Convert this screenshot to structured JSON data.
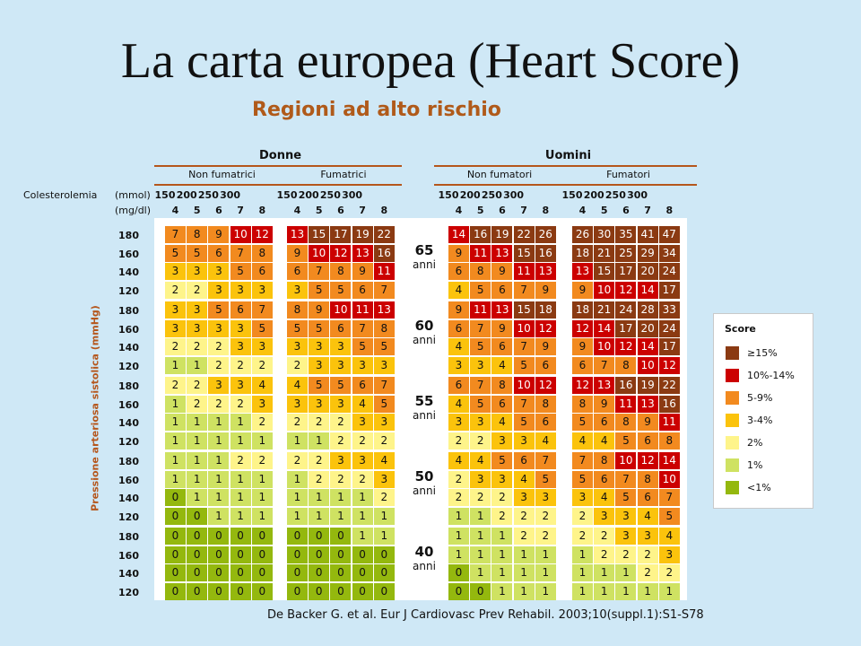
{
  "title": "La carta europea (Heart Score)",
  "subtitle": "Regioni ad alto rischio",
  "headers": {
    "women": "Donne",
    "men": "Uomini",
    "women_nonsmoker": "Non fumatrici",
    "women_smoker": "Fumatrici",
    "men_nonsmoker": "Non fumatori",
    "men_smoker": "Fumatori",
    "cholesterol_label": "Colesterolemia",
    "mmol_label": "(mmol)",
    "mgdl_label": "(mg/dl)",
    "mgdl_values": [
      "150",
      "200",
      "250",
      "300"
    ],
    "mmol_values": [
      "4",
      "5",
      "6",
      "7",
      "8"
    ]
  },
  "ylabel": "Pressione arteriosa sistolica (mmHg)",
  "citation": "De Backer G. et al. Eur J Cardiovasc Prev Rehabil. 2003;10(suppl.1):S1-S78",
  "chart_data": {
    "type": "heatmap",
    "title": "La carta europea (Heart Score)",
    "subtitle": "Regioni ad alto rischio",
    "ylabel": "Pressione arteriosa sistolica (mmHg)",
    "sbp_levels": [
      "180",
      "160",
      "140",
      "120"
    ],
    "cholesterol_mmol": [
      "4",
      "5",
      "6",
      "7",
      "8"
    ],
    "cholesterol_mgdl": [
      "150",
      "200",
      "250",
      "300"
    ],
    "age_unit": "anni",
    "groups": [
      "Donne · Non fumatrici",
      "Donne · Fumatrici",
      "Uomini · Non fumatori",
      "Uomini · Fumatori"
    ],
    "ages": [
      {
        "age": "65",
        "grids": [
          [
            [
              7,
              8,
              9,
              10,
              12
            ],
            [
              5,
              5,
              6,
              7,
              8
            ],
            [
              3,
              3,
              3,
              5,
              6
            ],
            [
              2,
              2,
              3,
              3,
              3
            ]
          ],
          [
            [
              13,
              15,
              17,
              19,
              22
            ],
            [
              9,
              10,
              12,
              13,
              16
            ],
            [
              6,
              7,
              8,
              9,
              11
            ],
            [
              3,
              5,
              5,
              6,
              7
            ]
          ],
          [
            [
              14,
              16,
              19,
              22,
              26
            ],
            [
              9,
              11,
              13,
              15,
              16
            ],
            [
              6,
              8,
              9,
              11,
              13
            ],
            [
              4,
              5,
              6,
              7,
              9
            ]
          ],
          [
            [
              26,
              30,
              35,
              41,
              47
            ],
            [
              18,
              21,
              25,
              29,
              34
            ],
            [
              13,
              15,
              17,
              20,
              24
            ],
            [
              9,
              10,
              12,
              14,
              17
            ]
          ]
        ]
      },
      {
        "age": "60",
        "grids": [
          [
            [
              3,
              3,
              5,
              6,
              7
            ],
            [
              3,
              3,
              3,
              3,
              5
            ],
            [
              2,
              2,
              2,
              3,
              3
            ],
            [
              1,
              1,
              2,
              2,
              2
            ]
          ],
          [
            [
              8,
              9,
              10,
              11,
              13
            ],
            [
              5,
              5,
              6,
              7,
              8
            ],
            [
              3,
              3,
              3,
              5,
              5
            ],
            [
              2,
              3,
              3,
              3,
              3
            ]
          ],
          [
            [
              9,
              11,
              13,
              15,
              18
            ],
            [
              6,
              7,
              9,
              10,
              12
            ],
            [
              4,
              5,
              6,
              7,
              9
            ],
            [
              3,
              3,
              4,
              5,
              6
            ]
          ],
          [
            [
              18,
              21,
              24,
              28,
              33
            ],
            [
              12,
              14,
              17,
              20,
              24
            ],
            [
              9,
              10,
              12,
              14,
              17
            ],
            [
              6,
              7,
              8,
              10,
              12
            ]
          ]
        ]
      },
      {
        "age": "55",
        "grids": [
          [
            [
              2,
              2,
              3,
              3,
              4
            ],
            [
              1,
              2,
              2,
              2,
              3
            ],
            [
              1,
              1,
              1,
              1,
              2
            ],
            [
              1,
              1,
              1,
              1,
              1
            ]
          ],
          [
            [
              4,
              5,
              5,
              6,
              7
            ],
            [
              3,
              3,
              3,
              4,
              5
            ],
            [
              2,
              2,
              2,
              3,
              3
            ],
            [
              1,
              1,
              2,
              2,
              2
            ]
          ],
          [
            [
              6,
              7,
              8,
              10,
              12
            ],
            [
              4,
              5,
              6,
              7,
              8
            ],
            [
              3,
              3,
              4,
              5,
              6
            ],
            [
              2,
              2,
              3,
              3,
              4
            ]
          ],
          [
            [
              12,
              13,
              16,
              19,
              22
            ],
            [
              8,
              9,
              11,
              13,
              16
            ],
            [
              5,
              6,
              8,
              9,
              11
            ],
            [
              4,
              4,
              5,
              6,
              8
            ]
          ]
        ]
      },
      {
        "age": "50",
        "grids": [
          [
            [
              1,
              1,
              1,
              2,
              2
            ],
            [
              1,
              1,
              1,
              1,
              1
            ],
            [
              0,
              1,
              1,
              1,
              1
            ],
            [
              0,
              0,
              1,
              1,
              1
            ]
          ],
          [
            [
              2,
              2,
              3,
              3,
              4
            ],
            [
              1,
              2,
              2,
              2,
              3
            ],
            [
              1,
              1,
              1,
              1,
              2
            ],
            [
              1,
              1,
              1,
              1,
              1
            ]
          ],
          [
            [
              4,
              4,
              5,
              6,
              7
            ],
            [
              2,
              3,
              3,
              4,
              5
            ],
            [
              2,
              2,
              2,
              3,
              3
            ],
            [
              1,
              1,
              2,
              2,
              2
            ]
          ],
          [
            [
              7,
              8,
              10,
              12,
              14
            ],
            [
              5,
              6,
              7,
              8,
              10
            ],
            [
              3,
              4,
              5,
              6,
              7
            ],
            [
              2,
              3,
              3,
              4,
              5
            ]
          ]
        ]
      },
      {
        "age": "40",
        "grids": [
          [
            [
              0,
              0,
              0,
              0,
              0
            ],
            [
              0,
              0,
              0,
              0,
              0
            ],
            [
              0,
              0,
              0,
              0,
              0
            ],
            [
              0,
              0,
              0,
              0,
              0
            ]
          ],
          [
            [
              0,
              0,
              0,
              1,
              1
            ],
            [
              0,
              0,
              0,
              0,
              0
            ],
            [
              0,
              0,
              0,
              0,
              0
            ],
            [
              0,
              0,
              0,
              0,
              0
            ]
          ],
          [
            [
              1,
              1,
              1,
              2,
              2
            ],
            [
              1,
              1,
              1,
              1,
              1
            ],
            [
              0,
              1,
              1,
              1,
              1
            ],
            [
              0,
              0,
              1,
              1,
              1
            ]
          ],
          [
            [
              2,
              2,
              3,
              3,
              4
            ],
            [
              1,
              2,
              2,
              2,
              3
            ],
            [
              1,
              1,
              1,
              2,
              2
            ],
            [
              1,
              1,
              1,
              1,
              1
            ]
          ]
        ]
      }
    ],
    "legend": {
      "title": "Score",
      "items": [
        {
          "label": "≥15%",
          "color": "#8b3a12"
        },
        {
          "label": "10%-14%",
          "color": "#cc0000"
        },
        {
          "label": "5-9%",
          "color": "#f28a1f"
        },
        {
          "label": "3-4%",
          "color": "#fbc30c"
        },
        {
          "label": "2%",
          "color": "#fef48a"
        },
        {
          "label": "1%",
          "color": "#cfe262"
        },
        {
          "label": "<1%",
          "color": "#94b80e"
        }
      ]
    }
  }
}
